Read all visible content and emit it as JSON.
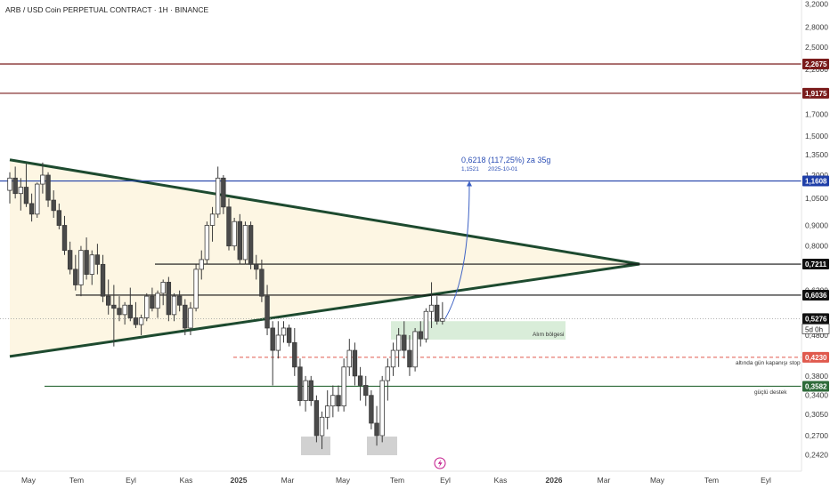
{
  "title": "ARB / USD Coin PERPETUAL CONTRACT · 1H · BINANCE",
  "colors": {
    "bull": "#ffffff",
    "bear": "#4a4a4a",
    "wick": "#3a3a3a",
    "triangle_line": "#1d4a2f",
    "triangle_fill": "#fdf6e3",
    "blue": "#1f3fa8",
    "dark_red": "#7a1c1c",
    "stop_red": "#e05a4e",
    "support_green": "#2e6b3a",
    "buy_zone": "#cfe9cf",
    "grey_box": "#c9c9c9",
    "accent_icon": "#c2188b"
  },
  "chart_data": {
    "type": "candlestick",
    "title": "ARB / USD Coin PERPETUAL CONTRACT · 1H · BINANCE",
    "x_axis": {
      "tick_labels": [
        "May",
        "Tem",
        "Eyl",
        "Kas",
        "2025",
        "Mar",
        "May",
        "Tem",
        "Eyl",
        "Kas",
        "2026",
        "Mar",
        "May",
        "Tem",
        "Eyl"
      ]
    },
    "y_axis": {
      "scale": "log",
      "tick_labels": [
        "3,2000",
        "2,8000",
        "2,5000",
        "2,2000",
        "1,9000",
        "1,7000",
        "1,5000",
        "1,3500",
        "1,2000",
        "1,0500",
        "0,9000",
        "0,8000",
        "0,7200",
        "0,6200",
        "0,5300",
        "0,4800",
        "0,3800",
        "0,3400",
        "0,3050",
        "0,2700",
        "0,2420"
      ]
    },
    "candles": [
      {
        "o": 1.1,
        "h": 1.22,
        "l": 1.02,
        "c": 1.18
      },
      {
        "o": 1.18,
        "h": 1.26,
        "l": 1.05,
        "c": 1.08
      },
      {
        "o": 1.08,
        "h": 1.18,
        "l": 0.98,
        "c": 1.12
      },
      {
        "o": 1.12,
        "h": 1.28,
        "l": 1.0,
        "c": 1.02
      },
      {
        "o": 1.02,
        "h": 1.08,
        "l": 0.92,
        "c": 0.96
      },
      {
        "o": 0.96,
        "h": 1.15,
        "l": 0.94,
        "c": 1.14
      },
      {
        "o": 1.14,
        "h": 1.29,
        "l": 1.08,
        "c": 1.2
      },
      {
        "o": 1.2,
        "h": 1.22,
        "l": 1.0,
        "c": 1.04
      },
      {
        "o": 1.04,
        "h": 1.1,
        "l": 0.94,
        "c": 0.98
      },
      {
        "o": 0.98,
        "h": 1.02,
        "l": 0.88,
        "c": 0.9
      },
      {
        "o": 0.9,
        "h": 0.95,
        "l": 0.76,
        "c": 0.78
      },
      {
        "o": 0.78,
        "h": 0.82,
        "l": 0.68,
        "c": 0.7
      },
      {
        "o": 0.7,
        "h": 0.76,
        "l": 0.62,
        "c": 0.64
      },
      {
        "o": 0.64,
        "h": 0.8,
        "l": 0.6,
        "c": 0.78
      },
      {
        "o": 0.78,
        "h": 0.84,
        "l": 0.66,
        "c": 0.68
      },
      {
        "o": 0.68,
        "h": 0.78,
        "l": 0.64,
        "c": 0.76
      },
      {
        "o": 0.76,
        "h": 0.81,
        "l": 0.68,
        "c": 0.72
      },
      {
        "o": 0.72,
        "h": 0.76,
        "l": 0.58,
        "c": 0.6
      },
      {
        "o": 0.6,
        "h": 0.66,
        "l": 0.54,
        "c": 0.57
      },
      {
        "o": 0.57,
        "h": 0.64,
        "l": 0.45,
        "c": 0.56
      },
      {
        "o": 0.56,
        "h": 0.6,
        "l": 0.52,
        "c": 0.54
      },
      {
        "o": 0.54,
        "h": 0.58,
        "l": 0.51,
        "c": 0.57
      },
      {
        "o": 0.57,
        "h": 0.63,
        "l": 0.52,
        "c": 0.53
      },
      {
        "o": 0.53,
        "h": 0.58,
        "l": 0.5,
        "c": 0.51
      },
      {
        "o": 0.51,
        "h": 0.54,
        "l": 0.48,
        "c": 0.53
      },
      {
        "o": 0.53,
        "h": 0.61,
        "l": 0.52,
        "c": 0.6
      },
      {
        "o": 0.6,
        "h": 0.63,
        "l": 0.55,
        "c": 0.56
      },
      {
        "o": 0.56,
        "h": 0.62,
        "l": 0.53,
        "c": 0.61
      },
      {
        "o": 0.61,
        "h": 0.66,
        "l": 0.57,
        "c": 0.65
      },
      {
        "o": 0.65,
        "h": 0.67,
        "l": 0.52,
        "c": 0.54
      },
      {
        "o": 0.54,
        "h": 0.61,
        "l": 0.52,
        "c": 0.6
      },
      {
        "o": 0.6,
        "h": 0.62,
        "l": 0.55,
        "c": 0.57
      },
      {
        "o": 0.57,
        "h": 0.59,
        "l": 0.48,
        "c": 0.5
      },
      {
        "o": 0.5,
        "h": 0.58,
        "l": 0.48,
        "c": 0.56
      },
      {
        "o": 0.56,
        "h": 0.72,
        "l": 0.55,
        "c": 0.7
      },
      {
        "o": 0.7,
        "h": 0.78,
        "l": 0.66,
        "c": 0.74
      },
      {
        "o": 0.74,
        "h": 0.92,
        "l": 0.72,
        "c": 0.9
      },
      {
        "o": 0.9,
        "h": 1.0,
        "l": 0.82,
        "c": 0.96
      },
      {
        "o": 0.96,
        "h": 1.26,
        "l": 0.94,
        "c": 1.18
      },
      {
        "o": 1.18,
        "h": 1.2,
        "l": 0.96,
        "c": 1.0
      },
      {
        "o": 1.0,
        "h": 1.05,
        "l": 0.78,
        "c": 0.8
      },
      {
        "o": 0.8,
        "h": 0.94,
        "l": 0.78,
        "c": 0.92
      },
      {
        "o": 0.92,
        "h": 0.96,
        "l": 0.72,
        "c": 0.74
      },
      {
        "o": 0.74,
        "h": 0.92,
        "l": 0.72,
        "c": 0.9
      },
      {
        "o": 0.9,
        "h": 0.92,
        "l": 0.7,
        "c": 0.72
      },
      {
        "o": 0.72,
        "h": 0.76,
        "l": 0.66,
        "c": 0.7
      },
      {
        "o": 0.7,
        "h": 0.74,
        "l": 0.58,
        "c": 0.6
      },
      {
        "o": 0.6,
        "h": 0.64,
        "l": 0.48,
        "c": 0.5
      },
      {
        "o": 0.5,
        "h": 0.52,
        "l": 0.36,
        "c": 0.44
      },
      {
        "o": 0.44,
        "h": 0.52,
        "l": 0.42,
        "c": 0.48
      },
      {
        "o": 0.48,
        "h": 0.52,
        "l": 0.46,
        "c": 0.5
      },
      {
        "o": 0.5,
        "h": 0.51,
        "l": 0.45,
        "c": 0.46
      },
      {
        "o": 0.46,
        "h": 0.5,
        "l": 0.38,
        "c": 0.4
      },
      {
        "o": 0.4,
        "h": 0.42,
        "l": 0.32,
        "c": 0.33
      },
      {
        "o": 0.33,
        "h": 0.38,
        "l": 0.31,
        "c": 0.37
      },
      {
        "o": 0.37,
        "h": 0.38,
        "l": 0.32,
        "c": 0.33
      },
      {
        "o": 0.33,
        "h": 0.34,
        "l": 0.26,
        "c": 0.27
      },
      {
        "o": 0.27,
        "h": 0.31,
        "l": 0.25,
        "c": 0.3
      },
      {
        "o": 0.3,
        "h": 0.35,
        "l": 0.28,
        "c": 0.32
      },
      {
        "o": 0.32,
        "h": 0.36,
        "l": 0.3,
        "c": 0.34
      },
      {
        "o": 0.34,
        "h": 0.36,
        "l": 0.31,
        "c": 0.32
      },
      {
        "o": 0.32,
        "h": 0.42,
        "l": 0.31,
        "c": 0.4
      },
      {
        "o": 0.4,
        "h": 0.47,
        "l": 0.38,
        "c": 0.44
      },
      {
        "o": 0.44,
        "h": 0.46,
        "l": 0.36,
        "c": 0.38
      },
      {
        "o": 0.38,
        "h": 0.4,
        "l": 0.33,
        "c": 0.36
      },
      {
        "o": 0.36,
        "h": 0.38,
        "l": 0.32,
        "c": 0.34
      },
      {
        "o": 0.34,
        "h": 0.35,
        "l": 0.28,
        "c": 0.29
      },
      {
        "o": 0.29,
        "h": 0.32,
        "l": 0.255,
        "c": 0.27
      },
      {
        "o": 0.27,
        "h": 0.38,
        "l": 0.26,
        "c": 0.37
      },
      {
        "o": 0.37,
        "h": 0.42,
        "l": 0.33,
        "c": 0.4
      },
      {
        "o": 0.4,
        "h": 0.46,
        "l": 0.38,
        "c": 0.44
      },
      {
        "o": 0.44,
        "h": 0.5,
        "l": 0.4,
        "c": 0.48
      },
      {
        "o": 0.48,
        "h": 0.52,
        "l": 0.42,
        "c": 0.44
      },
      {
        "o": 0.44,
        "h": 0.48,
        "l": 0.38,
        "c": 0.4
      },
      {
        "o": 0.4,
        "h": 0.5,
        "l": 0.39,
        "c": 0.49
      },
      {
        "o": 0.49,
        "h": 0.52,
        "l": 0.45,
        "c": 0.47
      },
      {
        "o": 0.47,
        "h": 0.56,
        "l": 0.46,
        "c": 0.55
      },
      {
        "o": 0.55,
        "h": 0.65,
        "l": 0.5,
        "c": 0.57
      },
      {
        "o": 0.57,
        "h": 0.6,
        "l": 0.51,
        "c": 0.52
      },
      {
        "o": 0.52,
        "h": 0.58,
        "l": 0.51,
        "c": 0.5276
      }
    ],
    "price_levels": [
      {
        "price": 2.2675,
        "label": "2,2675",
        "color": "#7a1c1c",
        "style": "solid"
      },
      {
        "price": 1.9175,
        "label": "1,9175",
        "color": "#7a1c1c",
        "style": "solid"
      },
      {
        "price": 1.1608,
        "label": "1,1608",
        "color": "#1f3fa8",
        "style": "solid"
      },
      {
        "price": 0.7211,
        "label": "0,7211",
        "color": "#111111",
        "style": "solid"
      },
      {
        "price": 0.6036,
        "label": "0,6036",
        "color": "#111111",
        "style": "solid"
      },
      {
        "price": 0.423,
        "label": "0,4230",
        "color": "#e05a4e",
        "style": "dashed"
      },
      {
        "price": 0.3582,
        "label": "0,3582",
        "color": "#2e6b3a",
        "style": "solid"
      }
    ],
    "current_price": {
      "label": "0,5276",
      "countdown": "5d 0h"
    },
    "triangle": {
      "upper": [
        {
          "idx": 0,
          "price": 1.31
        },
        {
          "idx": 115,
          "price": 0.7211
        }
      ],
      "lower": [
        {
          "idx": 0,
          "price": 0.425
        },
        {
          "idx": 115,
          "price": 0.7211
        }
      ]
    },
    "projection": {
      "label": "0,6218 (117,25%) za 35g",
      "sub_price": "1,1521",
      "sub_date": "2025-10-01",
      "target": 1.1608
    },
    "buy_zone": {
      "top": 0.52,
      "bottom": 0.468,
      "label": "Alım bölgesi"
    },
    "annotations": {
      "stop_label": "altında gün kapanışı stop",
      "support_label": "güçlü destek"
    }
  }
}
